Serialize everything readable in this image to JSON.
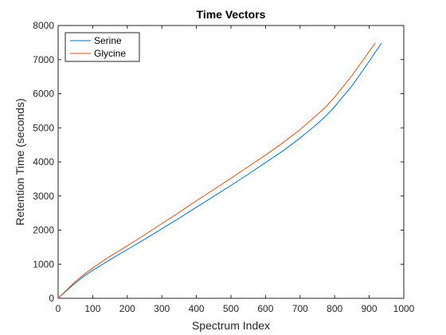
{
  "chart_data": {
    "type": "line",
    "title": "Time Vectors",
    "xlabel": "Spectrum Index",
    "ylabel": "Retention Time (seconds)",
    "xlim": [
      0,
      1000
    ],
    "ylim": [
      0,
      8000
    ],
    "xticks": [
      0,
      100,
      200,
      300,
      400,
      500,
      600,
      700,
      800,
      900,
      1000
    ],
    "yticks": [
      0,
      1000,
      2000,
      3000,
      4000,
      5000,
      6000,
      7000,
      8000
    ],
    "grid": false,
    "legend_position": "top-left",
    "series": [
      {
        "name": "Serine",
        "color": "#0072BD",
        "x": [
          0,
          25,
          50,
          75,
          100,
          150,
          200,
          250,
          300,
          350,
          400,
          450,
          500,
          550,
          600,
          650,
          700,
          750,
          775,
          800,
          850,
          900,
          935
        ],
        "y": [
          0,
          230,
          450,
          650,
          820,
          1130,
          1430,
          1730,
          2040,
          2350,
          2670,
          2990,
          3310,
          3640,
          3980,
          4320,
          4700,
          5120,
          5350,
          5620,
          6230,
          6950,
          7480
        ]
      },
      {
        "name": "Glycine",
        "color": "#D95319",
        "x": [
          0,
          25,
          50,
          75,
          100,
          150,
          200,
          250,
          300,
          350,
          400,
          450,
          500,
          550,
          600,
          650,
          700,
          750,
          775,
          800,
          850,
          900,
          918
        ],
        "y": [
          0,
          250,
          490,
          700,
          890,
          1230,
          1540,
          1860,
          2190,
          2520,
          2860,
          3190,
          3520,
          3860,
          4200,
          4560,
          4950,
          5390,
          5620,
          5900,
          6530,
          7240,
          7490
        ]
      }
    ]
  }
}
